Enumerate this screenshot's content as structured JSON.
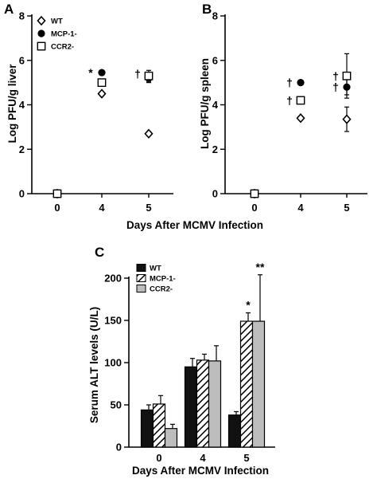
{
  "chart_data": [
    {
      "panel": "A",
      "type": "scatter",
      "xlabel": "Days After MCMV Infection",
      "ylabel": "Log PFU/g liver",
      "x": [
        0,
        4,
        5
      ],
      "ylim": [
        0,
        8
      ],
      "yticks": [
        0,
        2,
        4,
        6,
        8
      ],
      "legend": "top-left",
      "series": [
        {
          "name": "WT",
          "marker": "diamond",
          "values": [
            0,
            4.5,
            2.7
          ],
          "errors": [
            0,
            0,
            0
          ]
        },
        {
          "name": "MCP-1-",
          "marker": "filled-circle",
          "values": [
            0,
            5.45,
            5.2
          ],
          "errors": [
            0,
            0,
            0.2
          ]
        },
        {
          "name": "CCR2-",
          "marker": "open-square",
          "values": [
            0,
            5.0,
            5.3
          ],
          "errors": [
            0,
            0,
            0.25
          ]
        }
      ],
      "annotations": [
        {
          "text": "*",
          "x": 4,
          "y": 5.45
        },
        {
          "text": "†",
          "x": 5,
          "y": 5.4
        }
      ]
    },
    {
      "panel": "B",
      "type": "scatter",
      "xlabel": "Days After MCMV Infection",
      "ylabel": "Log PFU/g spleen",
      "x": [
        0,
        4,
        5
      ],
      "ylim": [
        0,
        8
      ],
      "yticks": [
        0,
        2,
        4,
        6,
        8
      ],
      "series": [
        {
          "name": "WT",
          "marker": "diamond",
          "values": [
            0,
            3.4,
            3.35
          ],
          "errors": [
            0,
            0,
            0.55
          ]
        },
        {
          "name": "MCP-1-",
          "marker": "filled-circle",
          "values": [
            0,
            5.0,
            4.8
          ],
          "errors": [
            0,
            0,
            0.35
          ]
        },
        {
          "name": "CCR2-",
          "marker": "open-square",
          "values": [
            0,
            4.2,
            5.3
          ],
          "errors": [
            0,
            0,
            1.0
          ]
        }
      ],
      "annotations": [
        {
          "text": "†",
          "x": 4,
          "y": 5.0
        },
        {
          "text": "†",
          "x": 4,
          "y": 4.2
        },
        {
          "text": "†",
          "x": 5,
          "y": 5.3
        },
        {
          "text": "†",
          "x": 5,
          "y": 4.8
        }
      ]
    },
    {
      "panel": "C",
      "type": "bar",
      "xlabel": "Days After MCMV Infection",
      "ylabel": "Serum ALT levels (U/L)",
      "categories": [
        "0",
        "4",
        "5"
      ],
      "ylim": [
        0,
        200
      ],
      "yticks": [
        0,
        50,
        100,
        150,
        200
      ],
      "legend": "top-left",
      "series": [
        {
          "name": "WT",
          "fill": "black",
          "values": [
            44,
            95,
            38
          ],
          "errors": [
            6,
            10,
            4
          ]
        },
        {
          "name": "MCP-1-",
          "fill": "hatched",
          "values": [
            51,
            103,
            149
          ],
          "errors": [
            10,
            7,
            10
          ]
        },
        {
          "name": "CCR2-",
          "fill": "gray",
          "values": [
            22,
            102,
            149
          ],
          "errors": [
            5,
            18,
            55
          ]
        }
      ],
      "annotations": [
        {
          "text": "*",
          "category": "5",
          "series": "MCP-1-"
        },
        {
          "text": "**",
          "category": "5",
          "series": "CCR2-"
        }
      ]
    }
  ],
  "colors": {
    "axis": "#000000",
    "wt_bar": "#111111",
    "ccr2_bar": "#bdbdbd",
    "hatch": "#000000"
  }
}
